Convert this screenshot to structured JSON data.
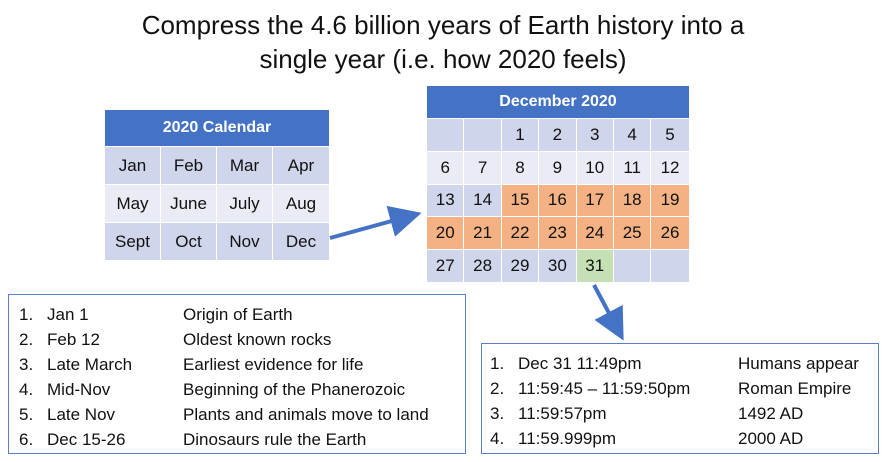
{
  "title_line1": "Compress the 4.6 billion years of Earth history into a",
  "title_line2": "single year (i.e. how 2020 feels)",
  "calendar_2020": {
    "header": "2020 Calendar",
    "months": [
      "Jan",
      "Feb",
      "Mar",
      "Apr",
      "May",
      "June",
      "July",
      "Aug",
      "Sept",
      "Oct",
      "Nov",
      "Dec"
    ]
  },
  "december_2020": {
    "header": "December 2020",
    "days": [
      "",
      "",
      "1",
      "2",
      "3",
      "4",
      "5",
      "6",
      "7",
      "8",
      "9",
      "10",
      "11",
      "12",
      "13",
      "14",
      "15",
      "16",
      "17",
      "18",
      "19",
      "20",
      "21",
      "22",
      "23",
      "24",
      "25",
      "26",
      "27",
      "28",
      "29",
      "30",
      "31",
      "",
      ""
    ]
  },
  "colors": {
    "accent": "#4472c4",
    "dino": "#f4b183",
    "last_day": "#c5e0b4",
    "cell_dark": "#cfd5ea",
    "cell_light": "#e9ebf5"
  },
  "timeline": [
    {
      "n": "1.",
      "when": "Jan 1",
      "event": "Origin of Earth"
    },
    {
      "n": "2.",
      "when": "Feb 12",
      "event": "Oldest known rocks"
    },
    {
      "n": "3.",
      "when": "Late March",
      "event": "Earliest evidence for life"
    },
    {
      "n": "4.",
      "when": "Mid-Nov",
      "event": "Beginning of the Phanerozoic"
    },
    {
      "n": "5.",
      "when": "Late Nov",
      "event": "Plants and animals move to land"
    },
    {
      "n": "6.",
      "when": "Dec 15-26",
      "event": "Dinosaurs rule the Earth"
    }
  ],
  "dec31_timeline": [
    {
      "n": "1.",
      "when": "Dec 31 11:49pm",
      "event": "Humans appear"
    },
    {
      "n": "2.",
      "when": "11:59:45 – 11:59:50pm",
      "event": "Roman Empire"
    },
    {
      "n": "3.",
      "when": "11:59:57pm",
      "event": "1492 AD"
    },
    {
      "n": "4.",
      "when": "11:59.999pm",
      "event": "2000 AD"
    }
  ]
}
